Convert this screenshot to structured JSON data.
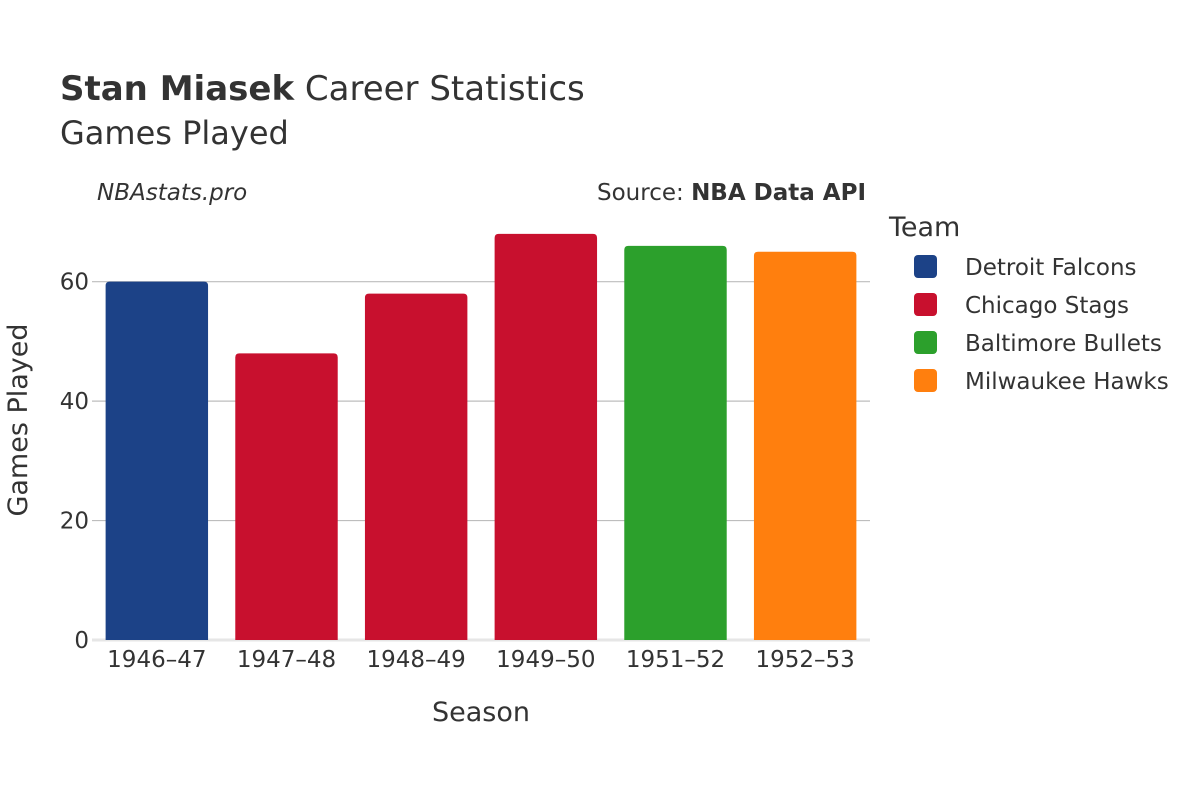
{
  "header": {
    "title_bold": "Stan Miasek",
    "title_rest": " Career Statistics",
    "subtitle": "Games Played"
  },
  "credits": {
    "site": "NBAstats.pro",
    "source_prefix": "Source: ",
    "source_name": "NBA Data API"
  },
  "chart_data": {
    "type": "bar",
    "title": "Stan Miasek Career Statistics",
    "subtitle": "Games Played",
    "xlabel": "Season",
    "ylabel": "Games Played",
    "categories": [
      "1946–47",
      "1947–48",
      "1948–49",
      "1949–50",
      "1951–52",
      "1952–53"
    ],
    "values": [
      60,
      48,
      58,
      68,
      66,
      65
    ],
    "teams": [
      "Detroit Falcons",
      "Chicago Stags",
      "Chicago Stags",
      "Chicago Stags",
      "Baltimore Bullets",
      "Milwaukee Hawks"
    ],
    "ylim": [
      0,
      72
    ],
    "yticks": [
      0,
      20,
      40,
      60
    ],
    "grid": true,
    "legend": {
      "title": "Team",
      "placement": "right",
      "entries": [
        {
          "name": "Detroit Falcons",
          "color": "#1c4287"
        },
        {
          "name": "Chicago Stags",
          "color": "#c8102e"
        },
        {
          "name": "Baltimore Bullets",
          "color": "#2ca02c"
        },
        {
          "name": "Milwaukee Hawks",
          "color": "#ff7f0e"
        }
      ]
    }
  }
}
